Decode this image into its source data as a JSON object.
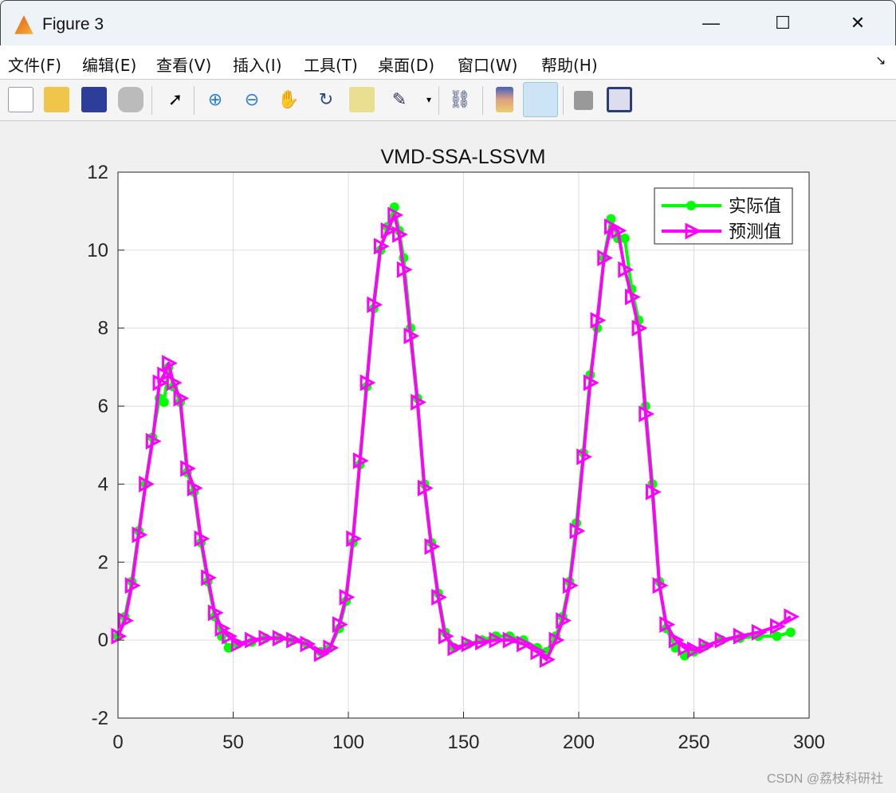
{
  "window": {
    "title": "Figure 3",
    "minimize": "—",
    "maximize": "☐",
    "close": "✕"
  },
  "menu": [
    "文件(F)",
    "编辑(E)",
    "查看(V)",
    "插入(I)",
    "工具(T)",
    "桌面(D)",
    "窗口(W)",
    "帮助(H)"
  ],
  "toolbar": {
    "icons": [
      "new-figure-icon",
      "open-icon",
      "save-icon",
      "print-icon",
      "pointer-icon",
      "zoom-in-icon",
      "zoom-out-icon",
      "pan-icon",
      "rotate-icon",
      "data-cursor-icon",
      "brush-icon",
      "link-icon",
      "colorbar-icon",
      "legend-icon",
      "hide-plot-tools-icon",
      "show-plot-tools-icon"
    ]
  },
  "watermark": "CSDN @荔枝科研社",
  "chart_data": {
    "type": "line",
    "title": "VMD-SSA-LSSVM",
    "xlabel": "",
    "ylabel": "",
    "xlim": [
      0,
      300
    ],
    "ylim": [
      -2,
      12
    ],
    "xticks": [
      "0",
      "50",
      "100",
      "150",
      "200",
      "250",
      "300"
    ],
    "yticks": [
      "-2",
      "0",
      "2",
      "4",
      "6",
      "8",
      "10",
      "12"
    ],
    "grid": true,
    "legend_position": "top-right",
    "x": [
      0,
      3,
      6,
      9,
      12,
      15,
      18,
      20,
      22,
      24,
      27,
      30,
      33,
      36,
      39,
      42,
      45,
      48,
      52,
      58,
      64,
      70,
      76,
      82,
      88,
      92,
      96,
      99,
      102,
      105,
      108,
      111,
      114,
      117,
      120,
      122,
      124,
      127,
      130,
      133,
      136,
      139,
      142,
      146,
      152,
      158,
      164,
      170,
      176,
      182,
      186,
      190,
      193,
      196,
      199,
      202,
      205,
      208,
      211,
      214,
      217,
      220,
      223,
      226,
      229,
      232,
      235,
      238,
      242,
      246,
      250,
      255,
      262,
      270,
      278,
      286,
      292
    ],
    "series": [
      {
        "name": "实际值",
        "color": "#00ff00",
        "marker": "circle",
        "values": [
          0.1,
          0.6,
          1.5,
          2.8,
          4.0,
          5.2,
          6.2,
          6.1,
          7.0,
          6.5,
          6.1,
          4.3,
          3.8,
          2.5,
          1.5,
          0.6,
          0.1,
          -0.2,
          -0.1,
          -0.05,
          0.05,
          0.05,
          0,
          -0.1,
          -0.3,
          -0.2,
          0.3,
          1.0,
          2.5,
          4.5,
          6.5,
          8.5,
          10.0,
          10.6,
          11.1,
          10.5,
          9.8,
          8.0,
          6.2,
          4.0,
          2.5,
          1.2,
          0.2,
          -0.2,
          -0.1,
          0,
          0.1,
          0.1,
          0,
          -0.2,
          -0.3,
          0.1,
          0.6,
          1.5,
          3.0,
          4.8,
          6.8,
          8.0,
          9.8,
          10.8,
          10.3,
          10.3,
          9.0,
          8.2,
          6.0,
          4.0,
          1.5,
          0.3,
          -0.2,
          -0.4,
          -0.3,
          -0.15,
          0,
          0.05,
          0.1,
          0.1,
          0.2
        ]
      },
      {
        "name": "预测值",
        "color": "#ff00ff",
        "marker": "triangle-right",
        "values": [
          0.1,
          0.5,
          1.4,
          2.7,
          4.0,
          5.1,
          6.6,
          6.8,
          7.1,
          6.6,
          6.2,
          4.4,
          3.9,
          2.6,
          1.6,
          0.7,
          0.3,
          0.1,
          -0.1,
          0,
          0.05,
          0.05,
          0,
          -0.1,
          -0.35,
          -0.2,
          0.4,
          1.1,
          2.6,
          4.6,
          6.6,
          8.6,
          10.1,
          10.5,
          10.9,
          10.4,
          9.5,
          7.8,
          6.1,
          3.9,
          2.4,
          1.1,
          0.1,
          -0.2,
          -0.1,
          -0.05,
          0,
          0,
          -0.1,
          -0.3,
          -0.5,
          0,
          0.5,
          1.4,
          2.8,
          4.7,
          6.6,
          8.2,
          9.8,
          10.6,
          10.5,
          9.5,
          8.8,
          8.0,
          5.8,
          3.8,
          1.4,
          0.4,
          0,
          -0.2,
          -0.25,
          -0.15,
          0,
          0.1,
          0.2,
          0.35,
          0.6
        ]
      }
    ]
  }
}
